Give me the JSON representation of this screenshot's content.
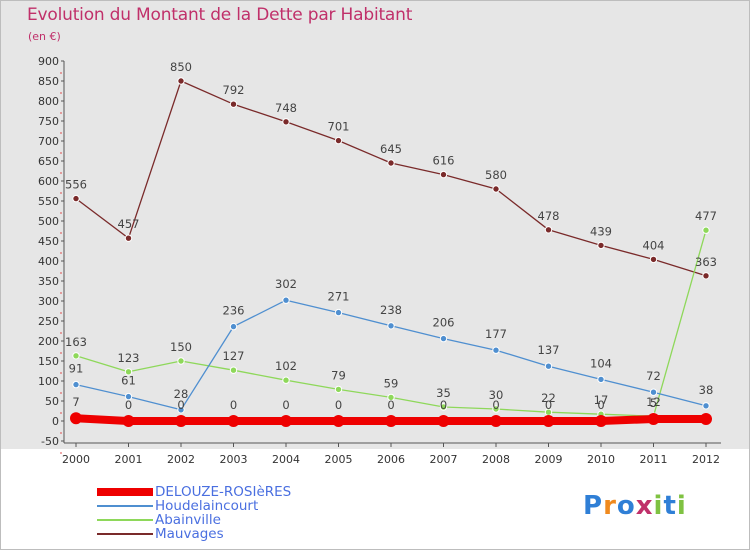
{
  "title": "Evolution du Montant de la Dette par Habitant",
  "unit_label": "(en €)",
  "brand": "Proxiti",
  "chart_data": {
    "type": "line",
    "categories": [
      "2000",
      "2001",
      "2002",
      "2003",
      "2004",
      "2005",
      "2006",
      "2007",
      "2008",
      "2009",
      "2010",
      "2011",
      "2012"
    ],
    "ylim": [
      -50,
      900
    ],
    "ytick_step": 50,
    "grid": "off",
    "legend_position": "bottom-left",
    "series": [
      {
        "name": "DELOUZE-ROSIèRES",
        "color": "#ee0000",
        "values": [
          7,
          0,
          0,
          0,
          0,
          0,
          0,
          0,
          0,
          0,
          0,
          5,
          5
        ],
        "labels": [
          "7",
          "0",
          "0",
          "0",
          "0",
          "0",
          "0",
          "0",
          "0",
          "0",
          "0",
          "5",
          ""
        ]
      },
      {
        "name": "Houdelaincourt",
        "color": "#4f8fd0",
        "values": [
          91,
          61,
          28,
          236,
          302,
          271,
          238,
          206,
          177,
          137,
          104,
          72,
          38
        ],
        "labels": [
          "91",
          "61",
          "28",
          "236",
          "302",
          "271",
          "238",
          "206",
          "177",
          "137",
          "104",
          "72",
          "38"
        ]
      },
      {
        "name": "Abainville",
        "color": "#8ed85a",
        "values": [
          163,
          123,
          150,
          127,
          102,
          79,
          59,
          35,
          30,
          22,
          17,
          12,
          477
        ],
        "labels": [
          "163",
          "123",
          "150",
          "127",
          "102",
          "79",
          "59",
          "35",
          "30",
          "22",
          "17",
          "12",
          "477"
        ]
      },
      {
        "name": "Mauvages",
        "color": "#7a2a2a",
        "values": [
          556,
          457,
          850,
          792,
          748,
          701,
          645,
          616,
          580,
          478,
          439,
          404,
          363
        ],
        "labels": [
          "556",
          "457",
          "850",
          "792",
          "748",
          "701",
          "645",
          "616",
          "580",
          "478",
          "439",
          "404",
          "363"
        ]
      }
    ]
  }
}
